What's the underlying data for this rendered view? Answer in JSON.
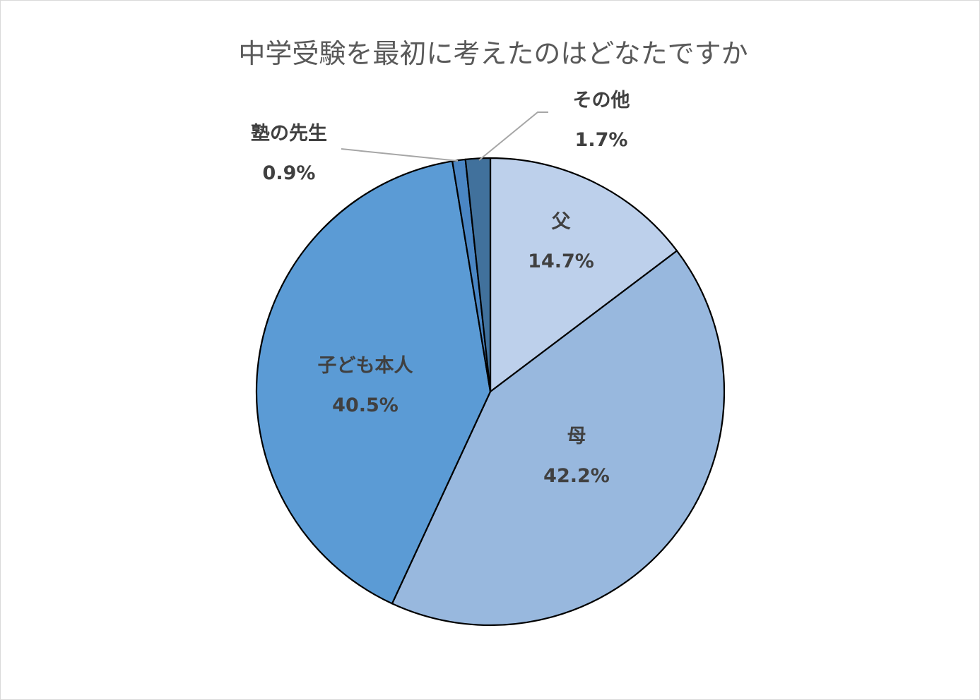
{
  "chart_data": {
    "type": "pie",
    "title": "中学受験を最初に考えたのはどなたですか",
    "slices": [
      {
        "label": "父",
        "value": 14.7,
        "value_text": "14.7%",
        "color": "#bdd0eb"
      },
      {
        "label": "母",
        "value": 42.2,
        "value_text": "42.2%",
        "color": "#98b8de"
      },
      {
        "label": "子ども本人",
        "value": 40.5,
        "value_text": "40.5%",
        "color": "#5b9bd5"
      },
      {
        "label": "塾の先生",
        "value": 0.9,
        "value_text": "0.9%",
        "color": "#4a86c4"
      },
      {
        "label": "その他",
        "value": 1.7,
        "value_text": "1.7%",
        "color": "#41719c"
      }
    ],
    "start_angle": "12 o'clock",
    "direction": "clockwise",
    "slice_border_color": "#000000",
    "leader_line_color": "#a6a6a6",
    "label_text_color": "#404040",
    "title_color": "#595959"
  }
}
